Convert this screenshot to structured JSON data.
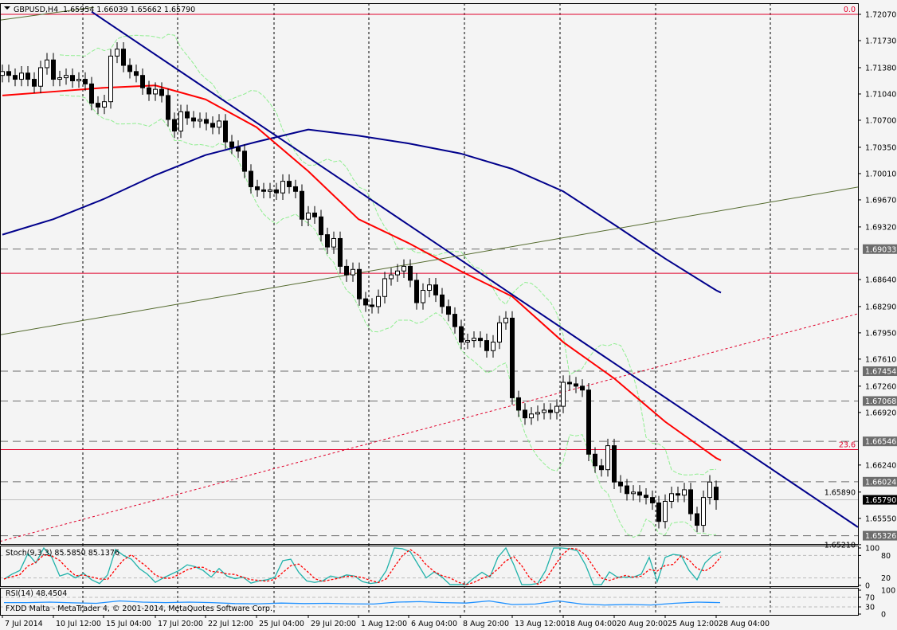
{
  "header": {
    "symbol": "GBPUSD,H4",
    "ohlc": "1.65954 1.66039 1.65662 1.65790",
    "menu_icon": "triangle-down-icon"
  },
  "footer_text": "FXDD Malta - MetaTrader 4, © 2001-2014, MetaQuotes Software Corp.",
  "colors": {
    "background": "#f4f4f4",
    "bull": "#ffffff",
    "bear": "#000000",
    "ma_fast": "#ff0000",
    "ma_slow": "#00008b",
    "bands": "#90ee90",
    "trend_blue": "#00008b",
    "trend_olive": "#556b2f",
    "fib": "#e0002a",
    "stoch_main": "#20b2aa",
    "stoch_signal": "#ff0000",
    "rsi": "#1e90ff"
  },
  "chart_data": [
    {
      "type": "candlestick",
      "symbol": "GBPUSD",
      "timeframe": "H4",
      "x_ticks": [
        "7 Jul 2014",
        "10 Jul 12:00",
        "15 Jul 04:00",
        "17 Jul 20:00",
        "22 Jul 12:00",
        "25 Jul 04:00",
        "29 Jul 20:00",
        "1 Aug 12:00",
        "6 Aug 04:00",
        "8 Aug 20:00",
        "13 Aug 12:00",
        "18 Aug 04:00",
        "20 Aug 20:00",
        "25 Aug 12:00",
        "28 Aug 04:00"
      ],
      "y_ticks": [
        "1.72070",
        "1.71730",
        "1.71380",
        "1.71040",
        "1.70700",
        "1.70350",
        "1.70010",
        "1.69670",
        "1.69320",
        "1.68640",
        "1.68290",
        "1.67950",
        "1.67610",
        "1.67260",
        "1.66920",
        "1.66240",
        "1.65890",
        "1.65550",
        "1.65210"
      ],
      "ylim": [
        1.6509,
        1.7221
      ],
      "first_open": 1.7128,
      "last_candle": {
        "open": 1.65954,
        "high": 1.66039,
        "low": 1.65662,
        "close": 1.6579
      },
      "closes": [
        1.7133,
        1.7128,
        1.7123,
        1.7131,
        1.7123,
        1.7114,
        1.7138,
        1.7148,
        1.7123,
        1.7125,
        1.7128,
        1.7121,
        1.7123,
        1.7117,
        1.7092,
        1.7087,
        1.7094,
        1.7153,
        1.7162,
        1.7141,
        1.7133,
        1.7128,
        1.7112,
        1.7104,
        1.711,
        1.7102,
        1.7071,
        1.7056,
        1.7081,
        1.7073,
        1.7069,
        1.7071,
        1.7066,
        1.7061,
        1.7069,
        1.7042,
        1.7035,
        1.703,
        1.7004,
        1.6984,
        1.698,
        1.6978,
        1.698,
        1.6976,
        1.6991,
        1.6984,
        1.6978,
        1.6942,
        1.695,
        1.6945,
        1.6922,
        1.6906,
        1.6917,
        1.6881,
        1.687,
        1.6877,
        1.6839,
        1.6831,
        1.6829,
        1.6842,
        1.6865,
        1.687,
        1.6875,
        1.6881,
        1.6863,
        1.6834,
        1.685,
        1.6857,
        1.6844,
        1.6829,
        1.6819,
        1.6803,
        1.6783,
        1.6785,
        1.6788,
        1.6785,
        1.6772,
        1.6783,
        1.6808,
        1.6814,
        1.6711,
        1.6695,
        1.6685,
        1.669,
        1.6692,
        1.6695,
        1.6692,
        1.67,
        1.6731,
        1.6729,
        1.6726,
        1.6721,
        1.6638,
        1.6623,
        1.6618,
        1.6649,
        1.6602,
        1.6597,
        1.6587,
        1.6589,
        1.6585,
        1.6582,
        1.6575,
        1.6551,
        1.6577,
        1.6587,
        1.6585,
        1.6592,
        1.6561,
        1.6546,
        1.6582,
        1.6602,
        1.6579
      ],
      "ma_fast_at_ticks": [
        1.7102,
        1.7107,
        1.7112,
        1.7115,
        1.7097,
        1.7061,
        1.7004,
        1.6942,
        1.6911,
        1.6875,
        1.6842,
        1.6783,
        1.6736,
        1.668,
        1.6633
      ],
      "ma_slow_at_ticks": [
        1.6922,
        1.6942,
        1.6968,
        1.6999,
        1.7025,
        1.7042,
        1.7058,
        1.705,
        1.704,
        1.7027,
        1.7007,
        1.6978,
        1.6935,
        1.6891,
        1.685
      ],
      "trendlines": [
        {
          "color": "trend_blue",
          "style": "solid",
          "from": [
            "15 Jul 04:00",
            1.72
          ],
          "to": [
            "28 Aug 04:00",
            1.6667
          ]
        },
        {
          "color": "trend_olive",
          "style": "solid",
          "from": [
            "7 Jul 2014",
            1.6793
          ],
          "to": [
            "28 Aug 04:00",
            1.6952
          ]
        },
        {
          "color": "trend_olive",
          "style": "solid",
          "from": [
            "7 Jul 2014",
            1.72
          ],
          "to": [
            "10 Jul 12:00",
            1.7209
          ]
        },
        {
          "color": "fib",
          "style": "dotted",
          "from": [
            "7 Jul 2014",
            1.6526
          ],
          "to": [
            "28 Aug 04:00",
            1.6771
          ]
        }
      ],
      "fib_levels": [
        {
          "label": "0.0",
          "price": 1.7207
        },
        {
          "label": "23.6",
          "price": 1.6644
        },
        {
          "label": "",
          "price": 1.6872
        }
      ],
      "horizontal_levels": [
        "1.69033",
        "1.67454",
        "1.67068",
        "1.66546",
        "1.66024",
        "1.65326"
      ],
      "current_price": "1.65790"
    },
    {
      "type": "line",
      "title": "Stoch(9,3,3) 85.5850 85.1376",
      "ylim": [
        0,
        100
      ],
      "levels": [
        20,
        80
      ],
      "y_ticks": [
        "100",
        "80",
        "20",
        "0"
      ],
      "main": [
        17,
        30,
        40,
        85,
        60,
        100,
        75,
        25,
        32,
        20,
        32,
        15,
        5,
        28,
        96,
        80,
        70,
        45,
        30,
        8,
        20,
        30,
        40,
        55,
        50,
        40,
        22,
        45,
        25,
        18,
        22,
        6,
        12,
        15,
        22,
        66,
        70,
        35,
        12,
        8,
        12,
        25,
        20,
        28,
        25,
        10,
        5,
        8,
        40,
        100,
        98,
        90,
        55,
        20,
        36,
        22,
        2,
        2,
        2,
        20,
        35,
        22,
        75,
        100,
        55,
        2,
        2,
        5,
        40,
        100,
        100,
        98,
        92,
        55,
        2,
        2,
        36,
        22,
        22,
        22,
        30,
        75,
        10,
        75,
        83,
        80,
        40,
        15,
        60,
        80,
        90
      ]
    },
    {
      "type": "line",
      "title": "RSI(14) 48.4504",
      "ylim": [
        0,
        100
      ],
      "levels": [
        30,
        70
      ],
      "y_ticks": [
        "100",
        "70",
        "30",
        "0"
      ],
      "values": [
        48,
        48,
        50,
        47,
        45,
        55,
        50,
        48,
        50,
        48,
        44,
        43,
        46,
        44,
        45,
        43,
        42,
        50,
        52,
        48,
        46,
        55,
        40,
        42,
        55,
        42,
        38,
        40,
        38,
        45,
        50,
        48
      ]
    }
  ]
}
